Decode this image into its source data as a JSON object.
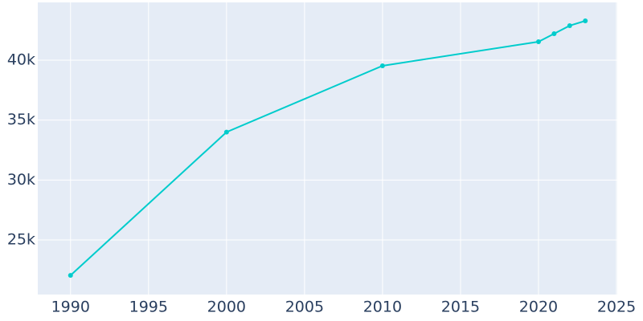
{
  "chart_data": {
    "type": "line",
    "x": [
      1990,
      2000,
      2010,
      2020,
      2021,
      2022,
      2023
    ],
    "series": [
      {
        "color": "#00cccc",
        "values": [
          22050,
          34000,
          39530,
          41540,
          42210,
          42880,
          43280
        ]
      }
    ],
    "xlim": [
      1987.9,
      2025.05
    ],
    "xticks": [
      1990,
      1995,
      2000,
      2005,
      2010,
      2015,
      2020,
      2025
    ],
    "ylim": [
      20450,
      44820
    ],
    "yticks": [
      {
        "value": 25000,
        "label": "25k"
      },
      {
        "value": 30000,
        "label": "30k"
      },
      {
        "value": 35000,
        "label": "35k"
      },
      {
        "value": 40000,
        "label": "40k"
      }
    ],
    "grid": true
  }
}
